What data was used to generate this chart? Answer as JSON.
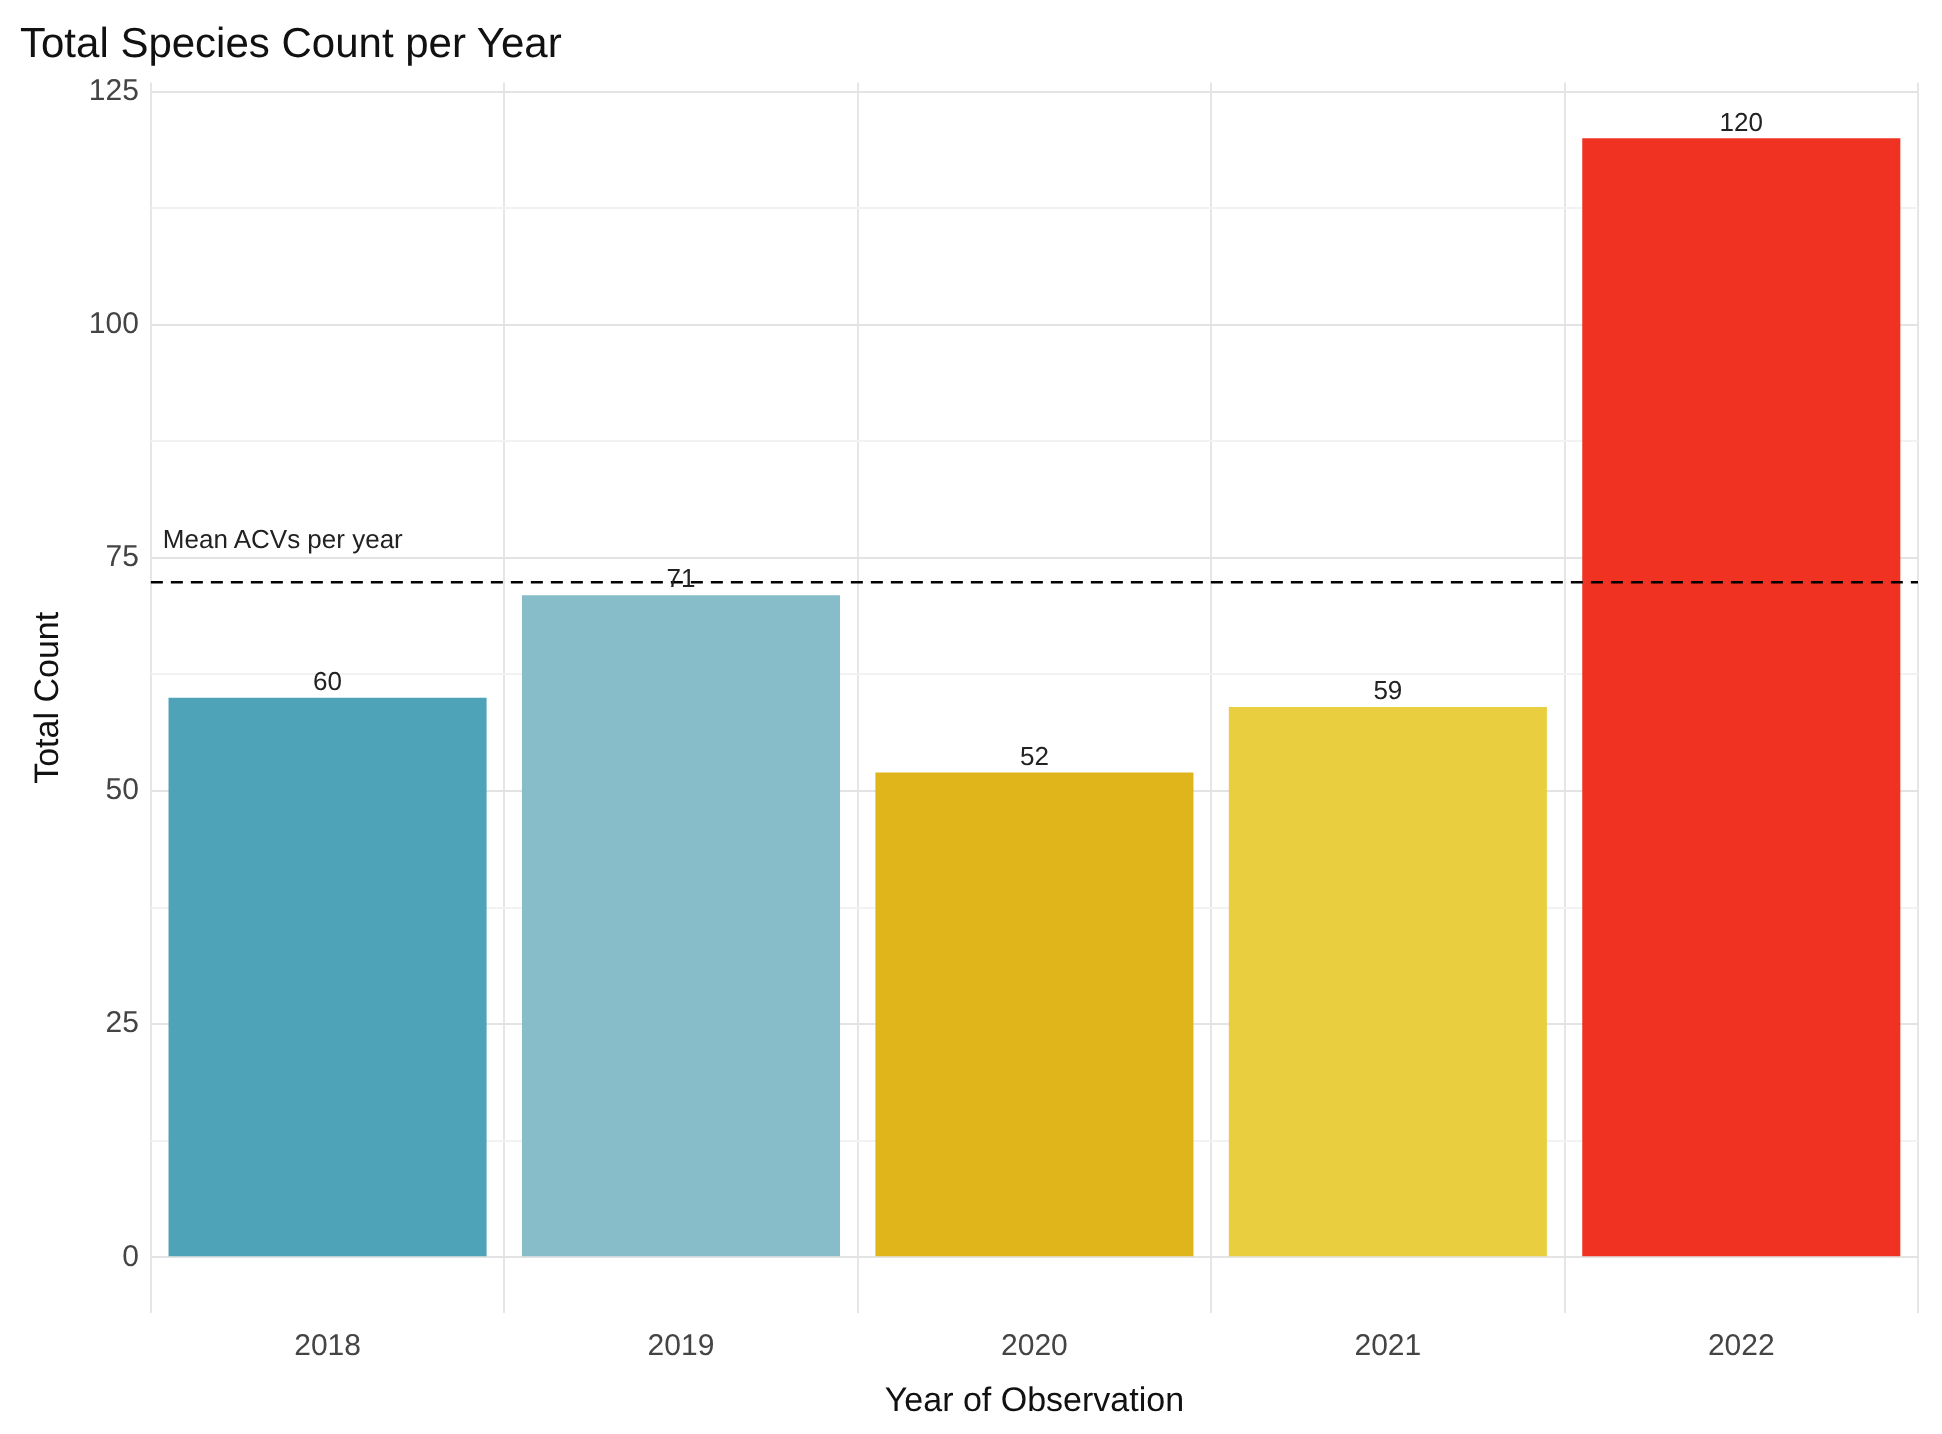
{
  "chart_data": {
    "type": "bar",
    "title": "Total Species Count per Year",
    "xlabel": "Year of Observation",
    "ylabel": "Total Count",
    "categories": [
      "2018",
      "2019",
      "2020",
      "2021",
      "2022"
    ],
    "values": [
      60,
      71,
      52,
      59,
      120
    ],
    "colors": [
      "#4ea3b8",
      "#86bdc9",
      "#e0b51c",
      "#e9cf40",
      "#ef3222"
    ],
    "data_labels": true,
    "ylim": [
      -6,
      126
    ],
    "yticks": [
      0,
      {
        "value": 12.5,
        "label": null
      },
      25,
      {
        "value": 37.5,
        "label": null
      },
      50,
      {
        "value": 62.5,
        "label": null
      },
      75,
      {
        "value": 87.5,
        "label": null
      },
      100,
      {
        "value": 112.5,
        "label": null
      },
      125
    ],
    "ref_lines": [
      {
        "axis": "y",
        "value": 72.4,
        "label": "Mean ACVs per year",
        "color": "#000000",
        "line_style": "dashed"
      }
    ],
    "grid": true,
    "legend": false
  }
}
